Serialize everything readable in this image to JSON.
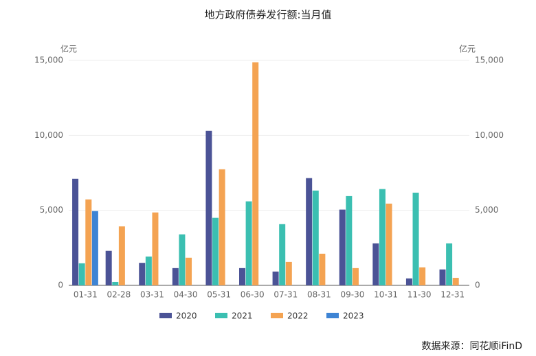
{
  "chart_data": {
    "type": "bar",
    "title": "地方政府债券发行额:当月值",
    "y_unit": "亿元",
    "y2_unit": "亿元",
    "categories": [
      "01-31",
      "02-28",
      "03-31",
      "04-30",
      "05-31",
      "06-30",
      "07-31",
      "08-31",
      "09-30",
      "10-31",
      "11-30",
      "12-31"
    ],
    "series": [
      {
        "name": "2020",
        "color": "#4b5396",
        "values": [
          7100,
          2300,
          1500,
          1150,
          10300,
          1150,
          920,
          7150,
          5050,
          2800,
          460,
          1060
        ]
      },
      {
        "name": "2021",
        "color": "#3bbfb1",
        "values": [
          1470,
          230,
          1920,
          3400,
          4500,
          5600,
          4080,
          6320,
          5950,
          6420,
          6180,
          2800
        ]
      },
      {
        "name": "2022",
        "color": "#f4a352",
        "values": [
          5730,
          3930,
          4860,
          1840,
          7740,
          14870,
          1560,
          2110,
          1150,
          5450,
          1200,
          500
        ]
      },
      {
        "name": "2023",
        "color": "#3e84d4",
        "values": [
          4950,
          null,
          null,
          null,
          null,
          null,
          null,
          null,
          null,
          null,
          null,
          null
        ]
      }
    ],
    "ylim": [
      0,
      15000
    ],
    "yticks": [
      0,
      {
        "value": 5000,
        "label": "5,000"
      },
      {
        "value": 10000,
        "label": "10,000"
      },
      {
        "value": 15000,
        "label": "15,000"
      }
    ],
    "y2lim": [
      0,
      15000
    ],
    "y2ticks": [
      0,
      {
        "value": 5000,
        "label": "5,000"
      },
      {
        "value": 10000,
        "label": "10,000"
      },
      {
        "value": 15000,
        "label": "15,000"
      }
    ],
    "grid": true,
    "legend": "bottom",
    "source": "数据来源：同花顺iFinD"
  }
}
